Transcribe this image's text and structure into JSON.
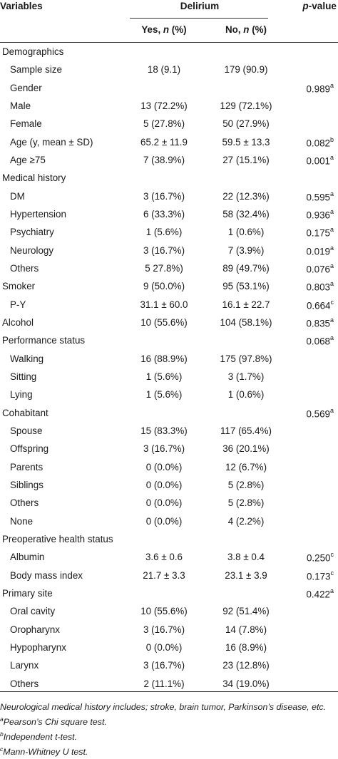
{
  "header": {
    "variables": "Variables",
    "delirium": "Delirium",
    "pvalue_p": "p",
    "pvalue_rest": "-value",
    "yes_text": "Yes, ",
    "yes_n": "n",
    "yes_pct": " (%)",
    "no_text": "No, ",
    "no_n": "n",
    "no_pct": " (%)"
  },
  "rows": [
    {
      "label": "Demographics",
      "yes": "",
      "no": "",
      "p": "",
      "sup": "",
      "indent": false
    },
    {
      "label": "Sample size",
      "yes": "18 (9.1)",
      "no": "179 (90.9)",
      "p": "",
      "sup": "",
      "indent": true
    },
    {
      "label": "Gender",
      "yes": "",
      "no": "",
      "p": "0.989",
      "sup": "a",
      "indent": true
    },
    {
      "label": "Male",
      "yes": "13 (72.2%)",
      "no": "129 (72.1%)",
      "p": "",
      "sup": "",
      "indent": true
    },
    {
      "label": "Female",
      "yes": "5 (27.8%)",
      "no": "50 (27.9%)",
      "p": "",
      "sup": "",
      "indent": true
    },
    {
      "label": "Age (y, mean ± SD)",
      "yes": "65.2 ± 11.9",
      "no": "59.5 ± 13.3",
      "p": "0.082",
      "sup": "b",
      "indent": true
    },
    {
      "label": "Age ≥75",
      "yes": "7 (38.9%)",
      "no": "27 (15.1%)",
      "p": "0.001",
      "sup": "a",
      "indent": true
    },
    {
      "label": "Medical history",
      "yes": "",
      "no": "",
      "p": "",
      "sup": "",
      "indent": false
    },
    {
      "label": "DM",
      "yes": "3 (16.7%)",
      "no": "22 (12.3%)",
      "p": "0.595",
      "sup": "a",
      "indent": true
    },
    {
      "label": "Hypertension",
      "yes": "6 (33.3%)",
      "no": "58 (32.4%)",
      "p": "0.936",
      "sup": "a",
      "indent": true
    },
    {
      "label": "Psychiatry",
      "yes": "1 (5.6%)",
      "no": "1 (0.6%)",
      "p": "0.175",
      "sup": "a",
      "indent": true
    },
    {
      "label": "Neurology",
      "yes": "3 (16.7%)",
      "no": "7 (3.9%)",
      "p": "0.019",
      "sup": "a",
      "indent": true
    },
    {
      "label": "Others",
      "yes": "5 27.8%)",
      "no": "89 (49.7%)",
      "p": "0.076",
      "sup": "a",
      "indent": true
    },
    {
      "label": "Smoker",
      "yes": "9 (50.0%)",
      "no": "95 (53.1%)",
      "p": "0.803",
      "sup": "a",
      "indent": false
    },
    {
      "label": "P-Y",
      "yes": "31.1 ± 60.0",
      "no": "16.1 ± 22.7",
      "p": "0.664",
      "sup": "c",
      "indent": true
    },
    {
      "label": "Alcohol",
      "yes": "10 (55.6%)",
      "no": "104 (58.1%)",
      "p": "0.835",
      "sup": "a",
      "indent": false
    },
    {
      "label": "Performance status",
      "yes": "",
      "no": "",
      "p": "0.068",
      "sup": "a",
      "indent": false
    },
    {
      "label": "Walking",
      "yes": "16 (88.9%)",
      "no": "175 (97.8%)",
      "p": "",
      "sup": "",
      "indent": true
    },
    {
      "label": "Sitting",
      "yes": "1 (5.6%)",
      "no": "3 (1.7%)",
      "p": "",
      "sup": "",
      "indent": true
    },
    {
      "label": "Lying",
      "yes": "1 (5.6%)",
      "no": "1 (0.6%)",
      "p": "",
      "sup": "",
      "indent": true
    },
    {
      "label": "Cohabitant",
      "yes": "",
      "no": "",
      "p": "0.569",
      "sup": "a",
      "indent": false
    },
    {
      "label": "Spouse",
      "yes": "15 (83.3%)",
      "no": "117 (65.4%)",
      "p": "",
      "sup": "",
      "indent": true
    },
    {
      "label": "Offspring",
      "yes": "3 (16.7%)",
      "no": "36 (20.1%)",
      "p": "",
      "sup": "",
      "indent": true
    },
    {
      "label": "Parents",
      "yes": "0 (0.0%)",
      "no": "12 (6.7%)",
      "p": "",
      "sup": "",
      "indent": true
    },
    {
      "label": "Siblings",
      "yes": "0 (0.0%)",
      "no": "5 (2.8%)",
      "p": "",
      "sup": "",
      "indent": true
    },
    {
      "label": "Others",
      "yes": "0 (0.0%)",
      "no": "5 (2.8%)",
      "p": "",
      "sup": "",
      "indent": true
    },
    {
      "label": "None",
      "yes": "0 (0.0%)",
      "no": "4 (2.2%)",
      "p": "",
      "sup": "",
      "indent": true
    },
    {
      "label": "Preoperative health status",
      "yes": "",
      "no": "",
      "p": "",
      "sup": "",
      "indent": false
    },
    {
      "label": "Albumin",
      "yes": "3.6 ± 0.6",
      "no": "3.8 ± 0.4",
      "p": "0.250",
      "sup": "c",
      "indent": true
    },
    {
      "label": "Body mass index",
      "yes": "21.7 ± 3.3",
      "no": "23.1 ± 3.9",
      "p": "0.173",
      "sup": "c",
      "indent": true
    },
    {
      "label": "Primary site",
      "yes": "",
      "no": "",
      "p": "0.422",
      "sup": "a",
      "indent": false
    },
    {
      "label": "Oral cavity",
      "yes": "10 (55.6%)",
      "no": "92 (51.4%)",
      "p": "",
      "sup": "",
      "indent": true
    },
    {
      "label": "Oropharynx",
      "yes": "3 (16.7%)",
      "no": "14 (7.8%)",
      "p": "",
      "sup": "",
      "indent": true
    },
    {
      "label": "Hypopharynx",
      "yes": "0 (0.0%)",
      "no": "16 (8.9%)",
      "p": "",
      "sup": "",
      "indent": true
    },
    {
      "label": "Larynx",
      "yes": "3 (16.7%)",
      "no": "23 (12.8%)",
      "p": "",
      "sup": "",
      "indent": true
    },
    {
      "label": "Others",
      "yes": "2 (11.1%)",
      "no": "34 (19.0%)",
      "p": "",
      "sup": "",
      "indent": true
    }
  ],
  "footnotes": [
    {
      "sup": "",
      "text": "Neurological medical history includes; stroke, brain tumor, Parkinson’s disease, etc."
    },
    {
      "sup": "a",
      "text": "Pearson’s Chi square test."
    },
    {
      "sup": "b",
      "text": "Independent t-test."
    },
    {
      "sup": "c",
      "text": "Mann-Whitney U test."
    }
  ]
}
